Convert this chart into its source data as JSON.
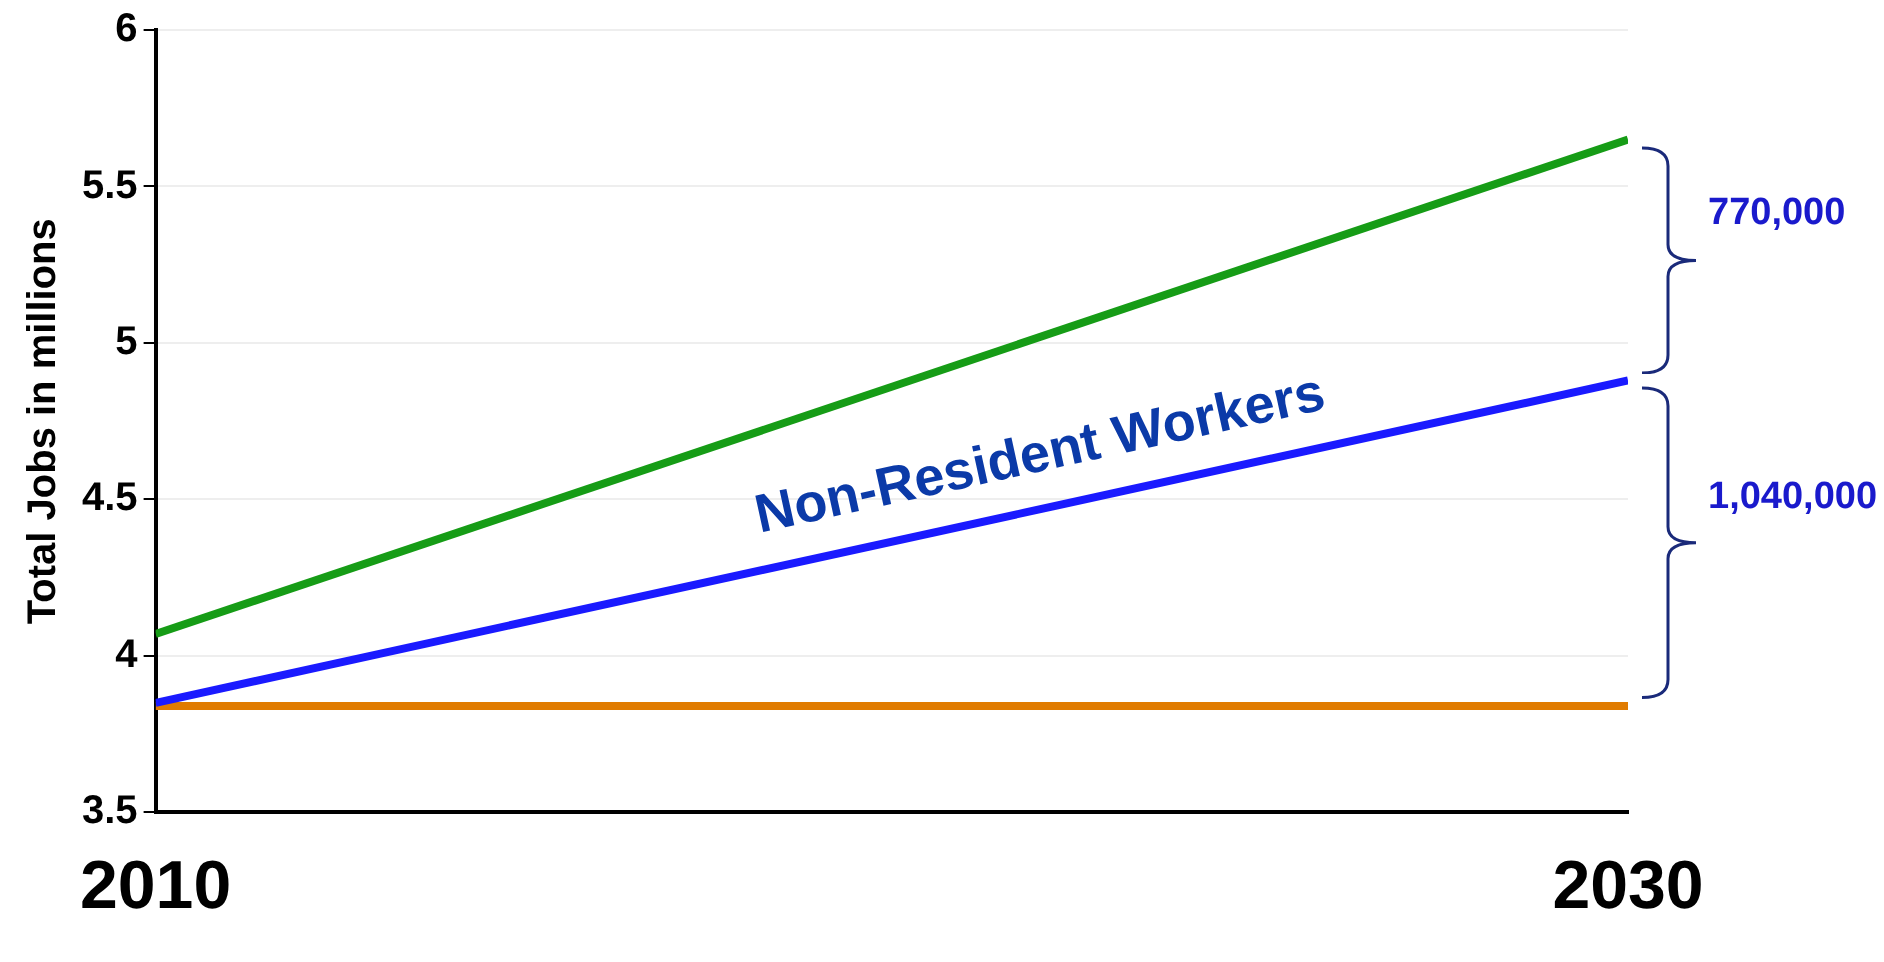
{
  "chart_data": {
    "type": "line",
    "ylabel": "Total Jobs in millions",
    "x": [
      2010,
      2030
    ],
    "series": [
      {
        "color": "#169c16",
        "values": [
          4.07,
          5.65
        ]
      },
      {
        "color": "#1a1aff",
        "values": [
          3.85,
          4.88
        ]
      },
      {
        "color": "#e07b00",
        "values": [
          3.84,
          3.84
        ]
      }
    ],
    "xlim": [
      2010,
      2030
    ],
    "xticks": [
      2010,
      2030
    ],
    "ylim": [
      3.5,
      6
    ],
    "yticks": [
      3.5,
      4,
      4.5,
      5,
      5.5,
      6
    ],
    "grid": "y",
    "legend": false,
    "marker": "none",
    "line_style": "solid",
    "annotations": [
      "Non-Resident Workers",
      "770,000",
      "1,040,000"
    ]
  }
}
